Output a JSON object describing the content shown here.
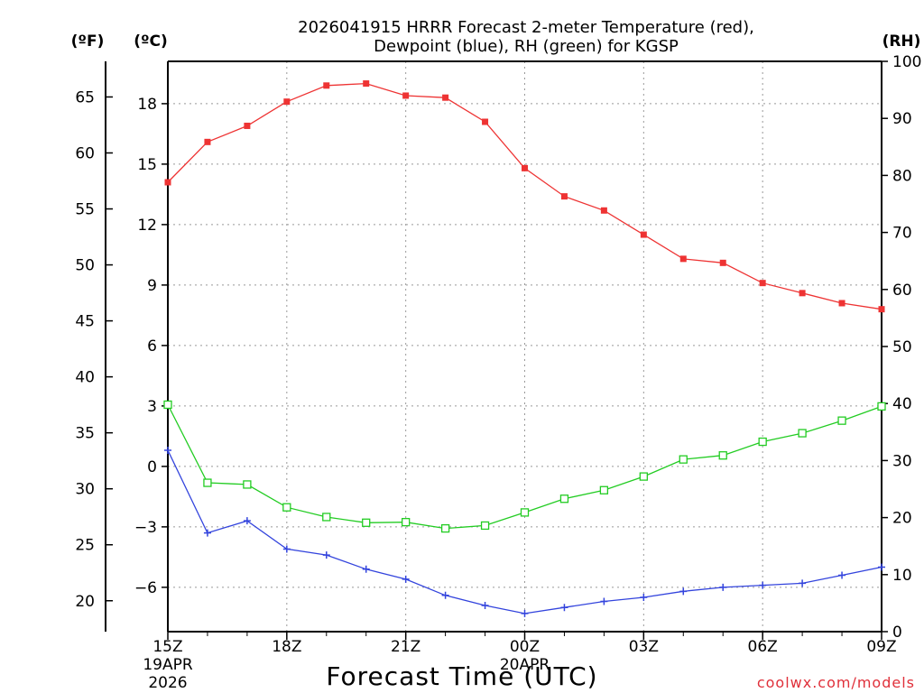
{
  "chart_data": {
    "type": "line",
    "title_line1": "2026041915 HRRR Forecast 2-meter Temperature (red),",
    "title_line2": "Dewpoint (blue), RH (green) for KGSP",
    "xlabel": "Forecast Time (UTC)",
    "left_outer_unit": "(ºF)",
    "left_inner_unit": "(ºC)",
    "right_unit": "(RH)",
    "watermark": "coolwx.com/models",
    "x_hours": [
      15,
      16,
      17,
      18,
      19,
      20,
      21,
      22,
      23,
      24,
      25,
      26,
      27,
      28,
      29,
      30,
      31,
      32,
      33
    ],
    "x_ticks": [
      {
        "hour": 15,
        "label": "15Z",
        "sub1": "19APR",
        "sub2": "2026"
      },
      {
        "hour": 18,
        "label": "18Z",
        "sub1": "",
        "sub2": ""
      },
      {
        "hour": 21,
        "label": "21Z",
        "sub1": "",
        "sub2": ""
      },
      {
        "hour": 24,
        "label": "00Z",
        "sub1": "20APR",
        "sub2": ""
      },
      {
        "hour": 27,
        "label": "03Z",
        "sub1": "",
        "sub2": ""
      },
      {
        "hour": 30,
        "label": "06Z",
        "sub1": "",
        "sub2": ""
      },
      {
        "hour": 33,
        "label": "09Z",
        "sub1": "",
        "sub2": ""
      }
    ],
    "celsius_range": [
      -8.2,
      20.1
    ],
    "celsius_ticks": [
      "18",
      "15",
      "12",
      "9",
      "6",
      "3",
      "0",
      "−3",
      "−6"
    ],
    "celsius_tick_values": [
      18,
      15,
      12,
      9,
      6,
      3,
      0,
      -3,
      -6
    ],
    "fahrenheit_ticks": [
      "65",
      "60",
      "55",
      "50",
      "45",
      "40",
      "35",
      "30",
      "25",
      "20"
    ],
    "fahrenheit_tick_values": [
      65,
      60,
      55,
      50,
      45,
      40,
      35,
      30,
      25,
      20
    ],
    "rh_range": [
      0,
      100
    ],
    "rh_ticks": [
      "100",
      "90",
      "80",
      "70",
      "60",
      "50",
      "40",
      "30",
      "20",
      "10",
      "0"
    ],
    "rh_tick_values": [
      100,
      90,
      80,
      70,
      60,
      50,
      40,
      30,
      20,
      10,
      0
    ],
    "series": [
      {
        "name": "Temperature",
        "color": "#ee3333",
        "marker": "filled-square",
        "values": [
          14.1,
          16.1,
          16.9,
          18.1,
          18.9,
          19.0,
          18.4,
          18.3,
          17.1,
          14.8,
          13.4,
          12.7,
          11.5,
          10.3,
          10.1,
          9.1,
          8.6,
          8.1,
          7.8
        ]
      },
      {
        "name": "Dewpoint",
        "color": "#3344dd",
        "marker": "plus",
        "values": [
          0.8,
          -3.3,
          -2.7,
          -4.1,
          -4.4,
          -5.1,
          -5.6,
          -6.4,
          -6.9,
          -7.3,
          -7.0,
          -6.7,
          -6.5,
          -6.2,
          -6.0,
          -5.9,
          -5.8,
          -5.4,
          -5.0
        ]
      },
      {
        "name": "RH",
        "color": "#22cc22",
        "marker": "open-square",
        "values": [
          39.8,
          26.1,
          25.8,
          21.8,
          20.1,
          19.1,
          19.2,
          18.1,
          18.6,
          20.9,
          23.3,
          24.8,
          27.2,
          30.2,
          30.9,
          33.3,
          34.8,
          37.0,
          39.5
        ]
      }
    ]
  }
}
